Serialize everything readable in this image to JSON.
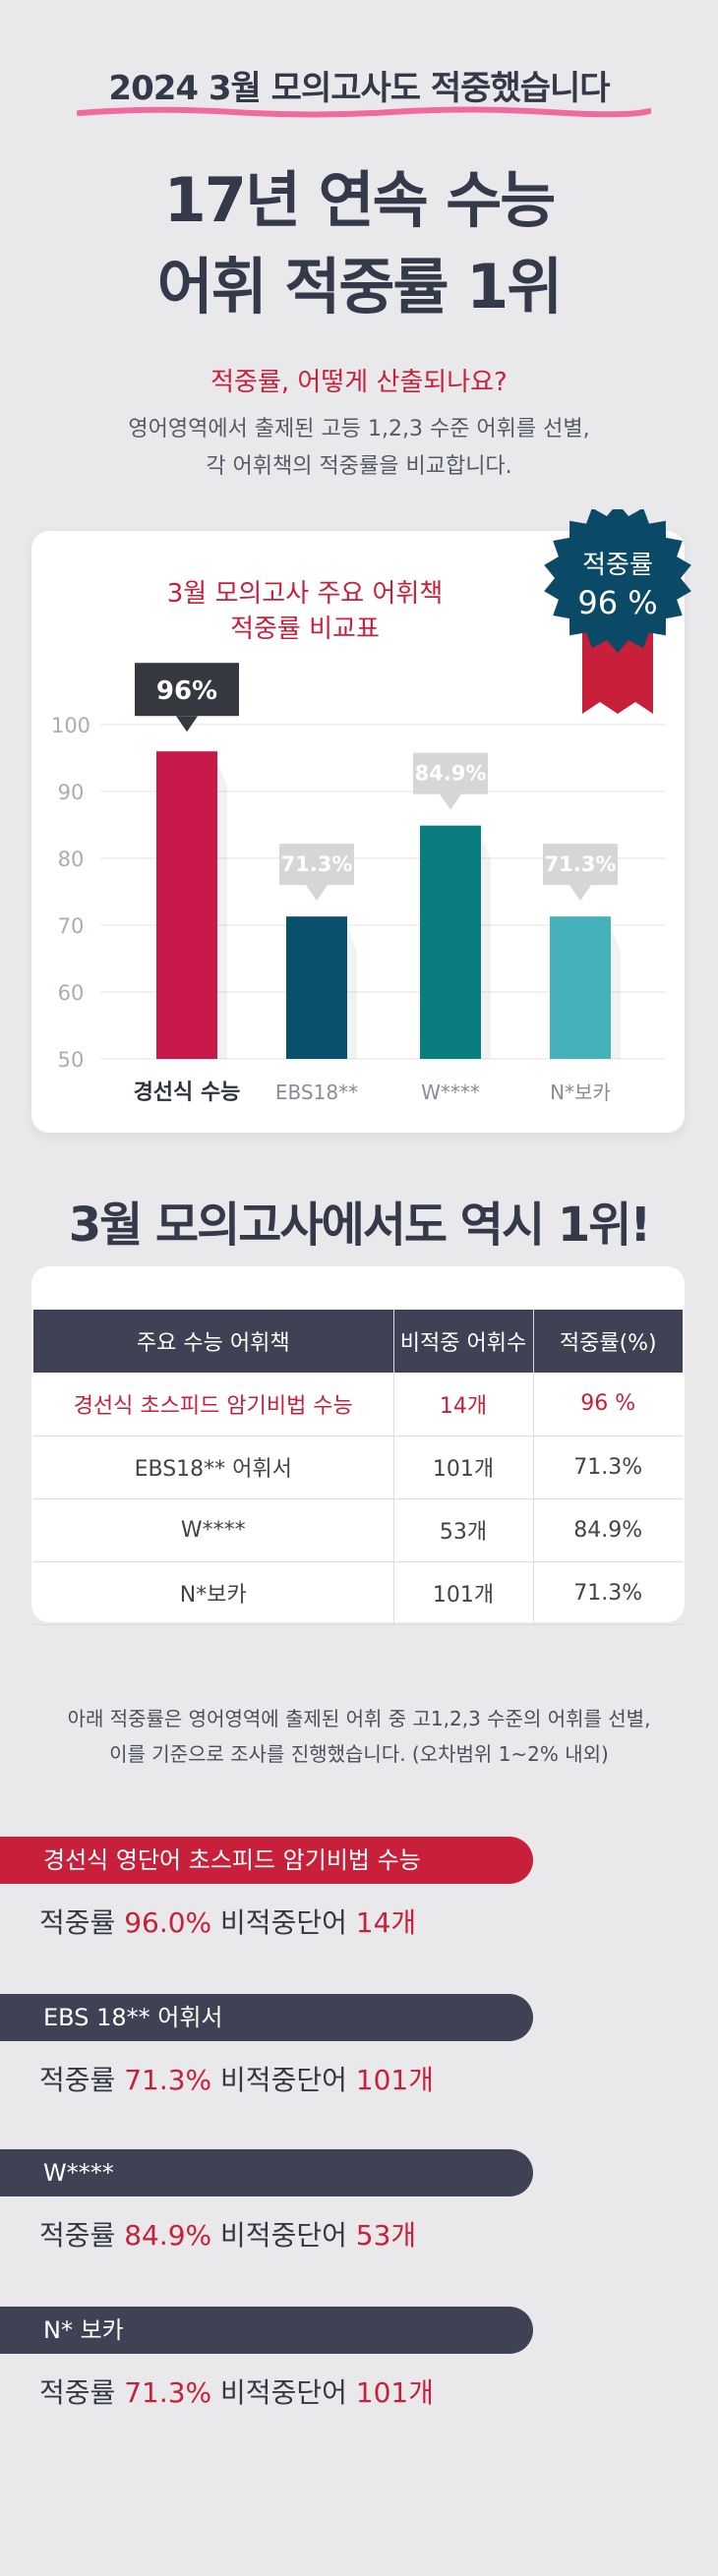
{
  "header": {
    "highlight": "2024 3월 모의고사도 적중했습니다",
    "title_line1": "17년 연속 수능",
    "title_line2": "어휘 적중률 1위"
  },
  "question": {
    "text": "적중률, 어떻게 산출되나요?",
    "desc_line1": "영어영역에서 출제된 고등 1,2,3 수준 어휘를 선별,",
    "desc_line2": "각 어휘책의 적중률을 비교합니다."
  },
  "badge": {
    "label": "적중률",
    "value": "96 %"
  },
  "colors": {
    "red": "#c8203a",
    "navy": "#3f4254",
    "teal_dark": "#08506b",
    "teal": "#0a7d80",
    "teal_light": "#45b1bb",
    "crimson": "#c8194a"
  },
  "chart_data": {
    "type": "bar",
    "title_line1": "3월 모의고사 주요 어휘책",
    "title_line2": "적중률 비교표",
    "categories": [
      "경선식 수능",
      "EBS18**",
      "W****",
      "N*보카"
    ],
    "values": [
      96,
      71.3,
      84.9,
      71.3
    ],
    "data_labels": [
      "96%",
      "71.3%",
      "84.9%",
      "71.3%"
    ],
    "bar_colors": [
      "#c8194a",
      "#08506b",
      "#0a7d80",
      "#45b1bb"
    ],
    "ylim": [
      50,
      100
    ],
    "yticks": [
      100,
      90,
      80,
      70,
      60,
      50
    ],
    "grid": true
  },
  "section2": {
    "title": "3월 모의고사에서도 역시 1위!"
  },
  "table": {
    "headers": [
      "주요 수능 어휘책",
      "비적중 어휘수",
      "적중률(%)"
    ],
    "rows": [
      [
        "경선식 초스피드 암기비법 수능",
        "14개",
        "96 %"
      ],
      [
        "EBS18** 어휘서",
        "101개",
        "71.3%"
      ],
      [
        "W****",
        "53개",
        "84.9%"
      ],
      [
        "N*보카",
        "101개",
        "71.3%"
      ]
    ]
  },
  "note": {
    "line1": "아래 적중률은 영어영역에 출제된 어휘 중 고1,2,3 수준의 어휘를 선별,",
    "line2": "이를 기준으로 조사를 진행했습니다. (오차범위 1~2% 내외)"
  },
  "summaries": [
    {
      "name": "경선식 영단어 초스피드 암기비법 수능",
      "rate_label": "적중률",
      "rate": "96.0%",
      "miss_label": "비적중단어",
      "miss": "14개",
      "color": "#c8203a"
    },
    {
      "name": "EBS 18** 어휘서",
      "rate_label": "적중률",
      "rate": "71.3%",
      "miss_label": "비적중단어",
      "miss": "101개",
      "color": "#3f4254"
    },
    {
      "name": "W****",
      "rate_label": "적중률",
      "rate": "84.9%",
      "miss_label": "비적중단어",
      "miss": "53개",
      "color": "#3f4254"
    },
    {
      "name": "N* 보카",
      "rate_label": "적중률",
      "rate": "71.3%",
      "miss_label": "비적중단어",
      "miss": "101개",
      "color": "#3f4254"
    }
  ]
}
